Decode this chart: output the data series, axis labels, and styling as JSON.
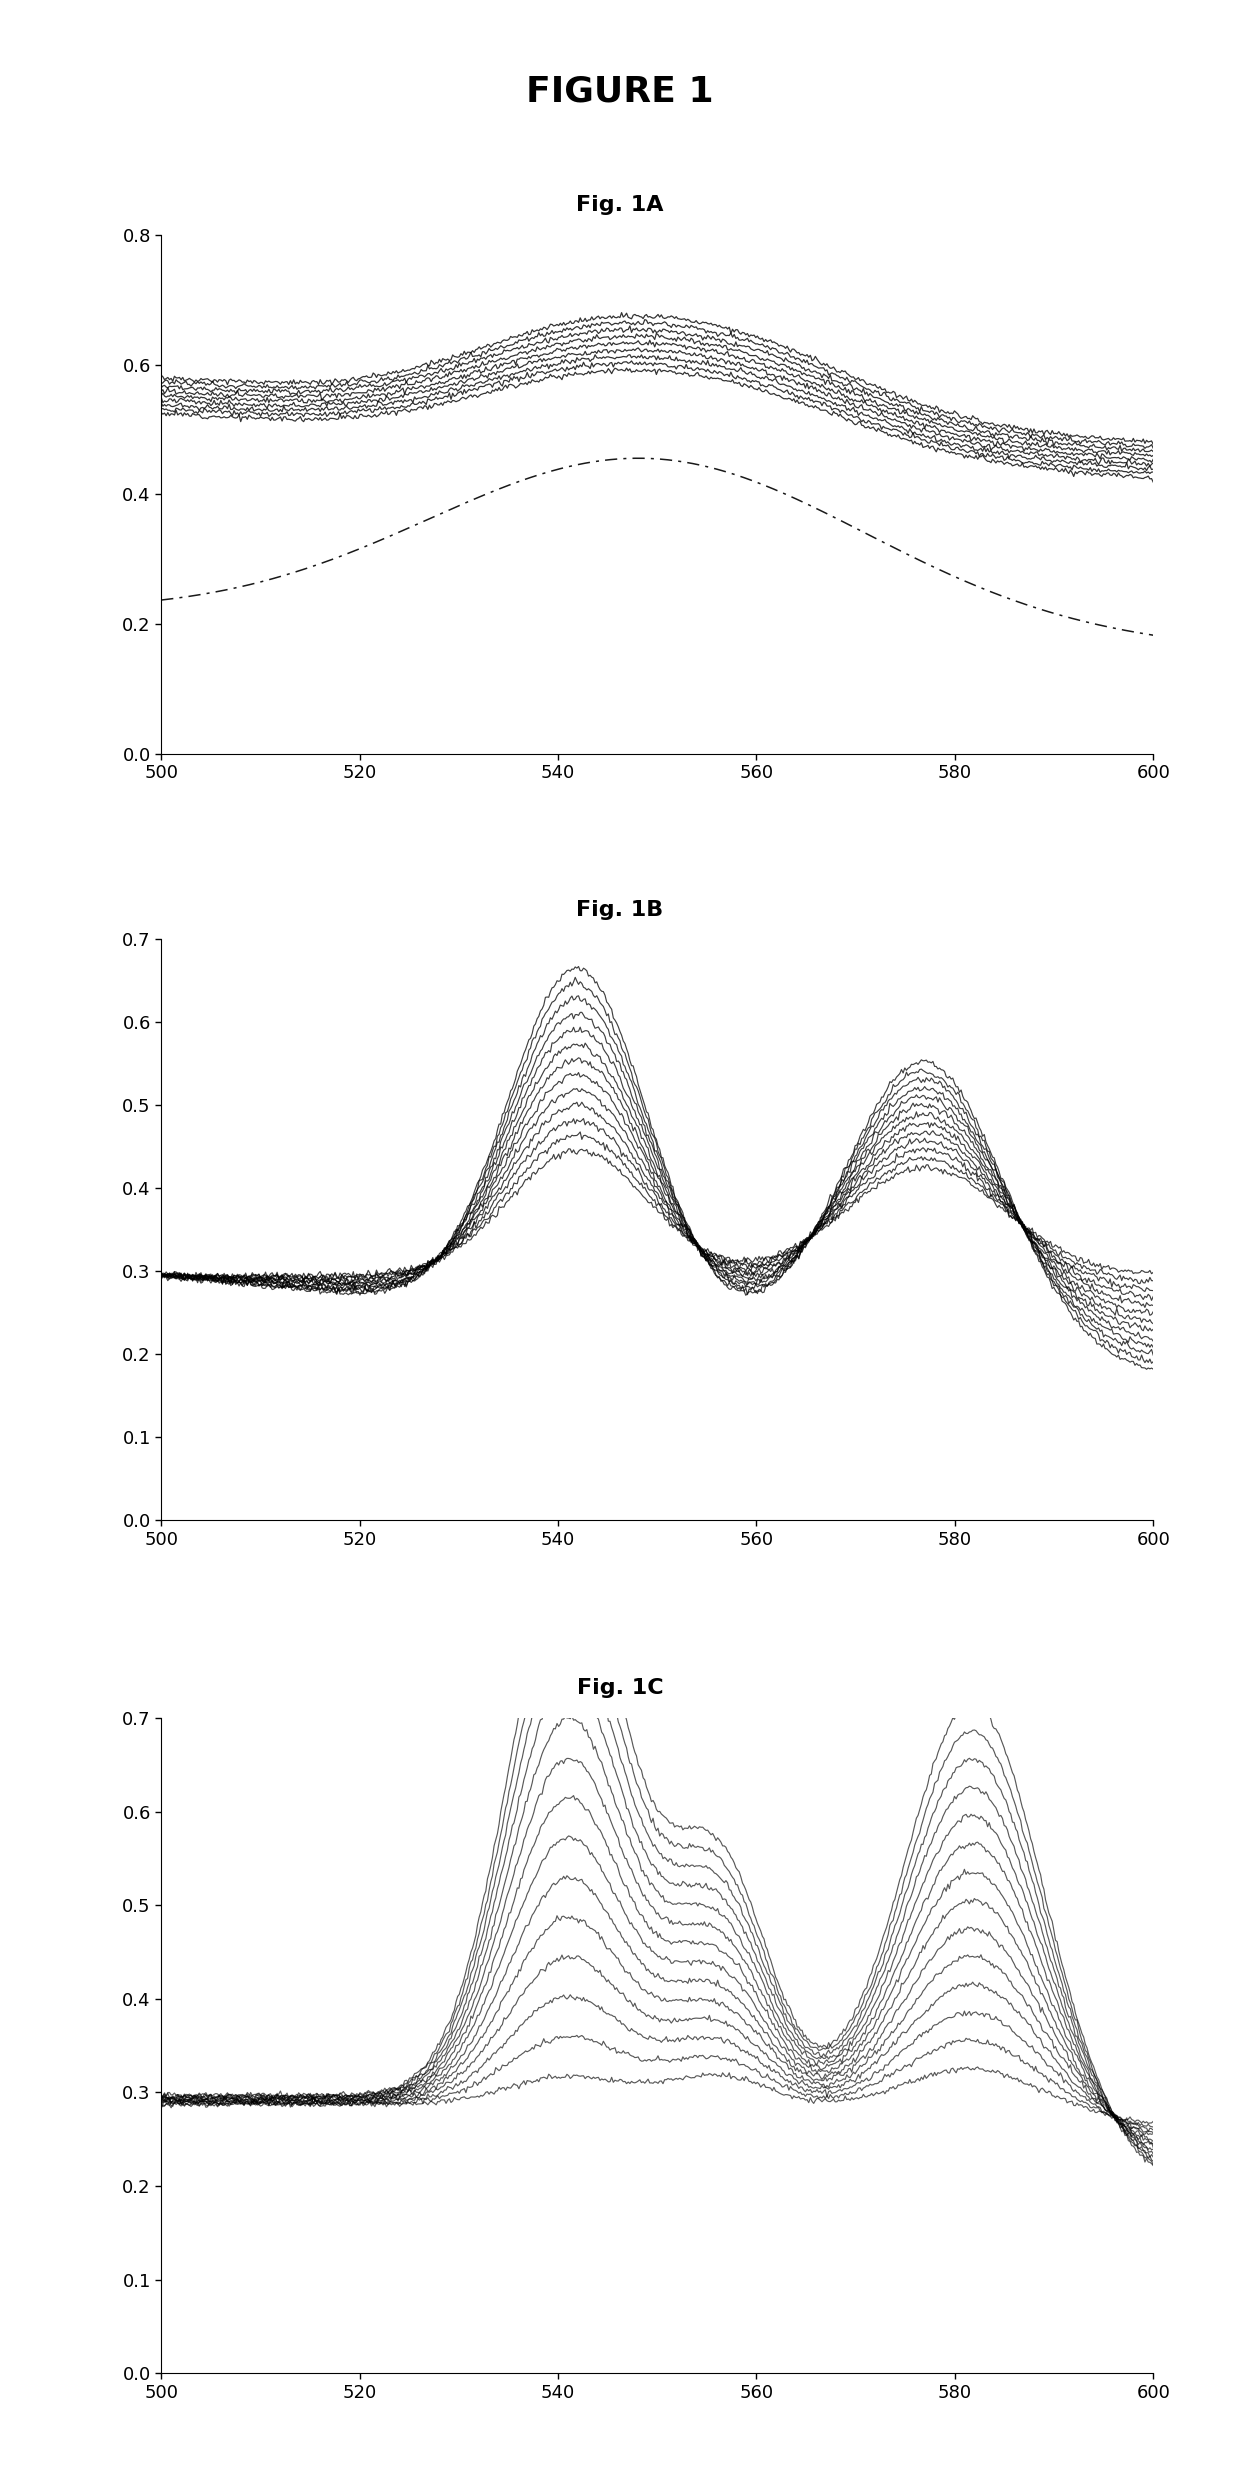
{
  "title": "FIGURE 1",
  "title_fontsize": 26,
  "title_fontweight": "bold",
  "fig_1A_title": "Fig. 1A",
  "fig_1B_title": "Fig. 1B",
  "fig_1C_title": "Fig. 1C",
  "subtitle_fontsize": 16,
  "subtitle_fontweight": "bold",
  "x_min": 500,
  "x_max": 600,
  "x_ticks": [
    500,
    520,
    540,
    560,
    580,
    600
  ],
  "fig1A_ylim": [
    0.0,
    0.8
  ],
  "fig1A_yticks": [
    0.0,
    0.2,
    0.4,
    0.6,
    0.8
  ],
  "fig1B_ylim": [
    0.0,
    0.7
  ],
  "fig1B_yticks": [
    0.0,
    0.1,
    0.2,
    0.3,
    0.4,
    0.5,
    0.6,
    0.7
  ],
  "fig1C_ylim": [
    0.0,
    0.7
  ],
  "fig1C_yticks": [
    0.0,
    0.1,
    0.2,
    0.3,
    0.4,
    0.5,
    0.6,
    0.7
  ],
  "line_color": "#000000",
  "background_color": "#ffffff",
  "n_curves_1A_solid": 9,
  "n_curves_1B": 13,
  "n_curves_1C": 14
}
